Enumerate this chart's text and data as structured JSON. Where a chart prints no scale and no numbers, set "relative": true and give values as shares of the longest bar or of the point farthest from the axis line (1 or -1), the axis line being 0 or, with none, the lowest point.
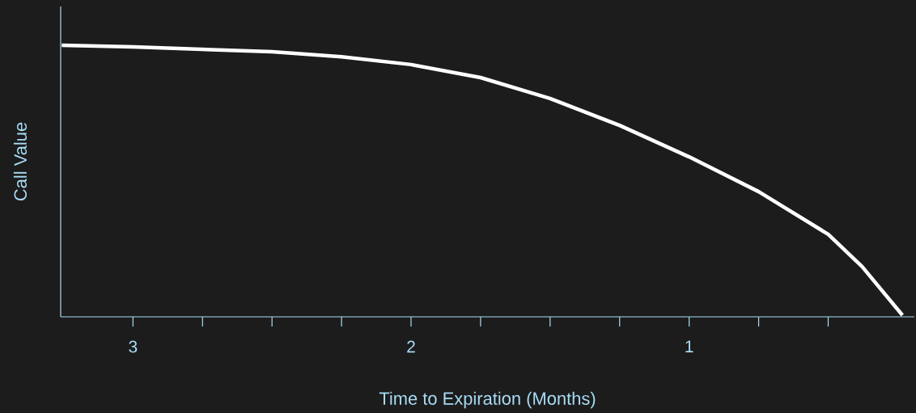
{
  "chart_data": {
    "type": "line",
    "xlabel": "Time to Expiration (Months)",
    "ylabel": "Call Value",
    "relative": true,
    "xlim": [
      3.26,
      0.19
    ],
    "xticks": [
      3,
      {
        "value": 2.75,
        "label": null
      },
      {
        "value": 2.5,
        "label": null
      },
      {
        "value": 2.25,
        "label": null
      },
      2,
      {
        "value": 1.75,
        "label": null
      },
      {
        "value": 1.5,
        "label": null
      },
      {
        "value": 1.25,
        "label": null
      },
      1,
      {
        "value": 0.75,
        "label": null
      },
      {
        "value": 0.5,
        "label": null
      }
    ],
    "series": [
      {
        "color": "#ffffff",
        "x": [
          3.256,
          3.0,
          2.75,
          2.5,
          2.25,
          2.0,
          1.75,
          1.5,
          1.25,
          1.0,
          0.75,
          0.5,
          0.378,
          0.233
        ],
        "values": [
          1.0,
          0.994,
          0.985,
          0.976,
          0.958,
          0.929,
          0.881,
          0.804,
          0.705,
          0.589,
          0.461,
          0.304,
          0.185,
          0.006
        ]
      }
    ]
  }
}
